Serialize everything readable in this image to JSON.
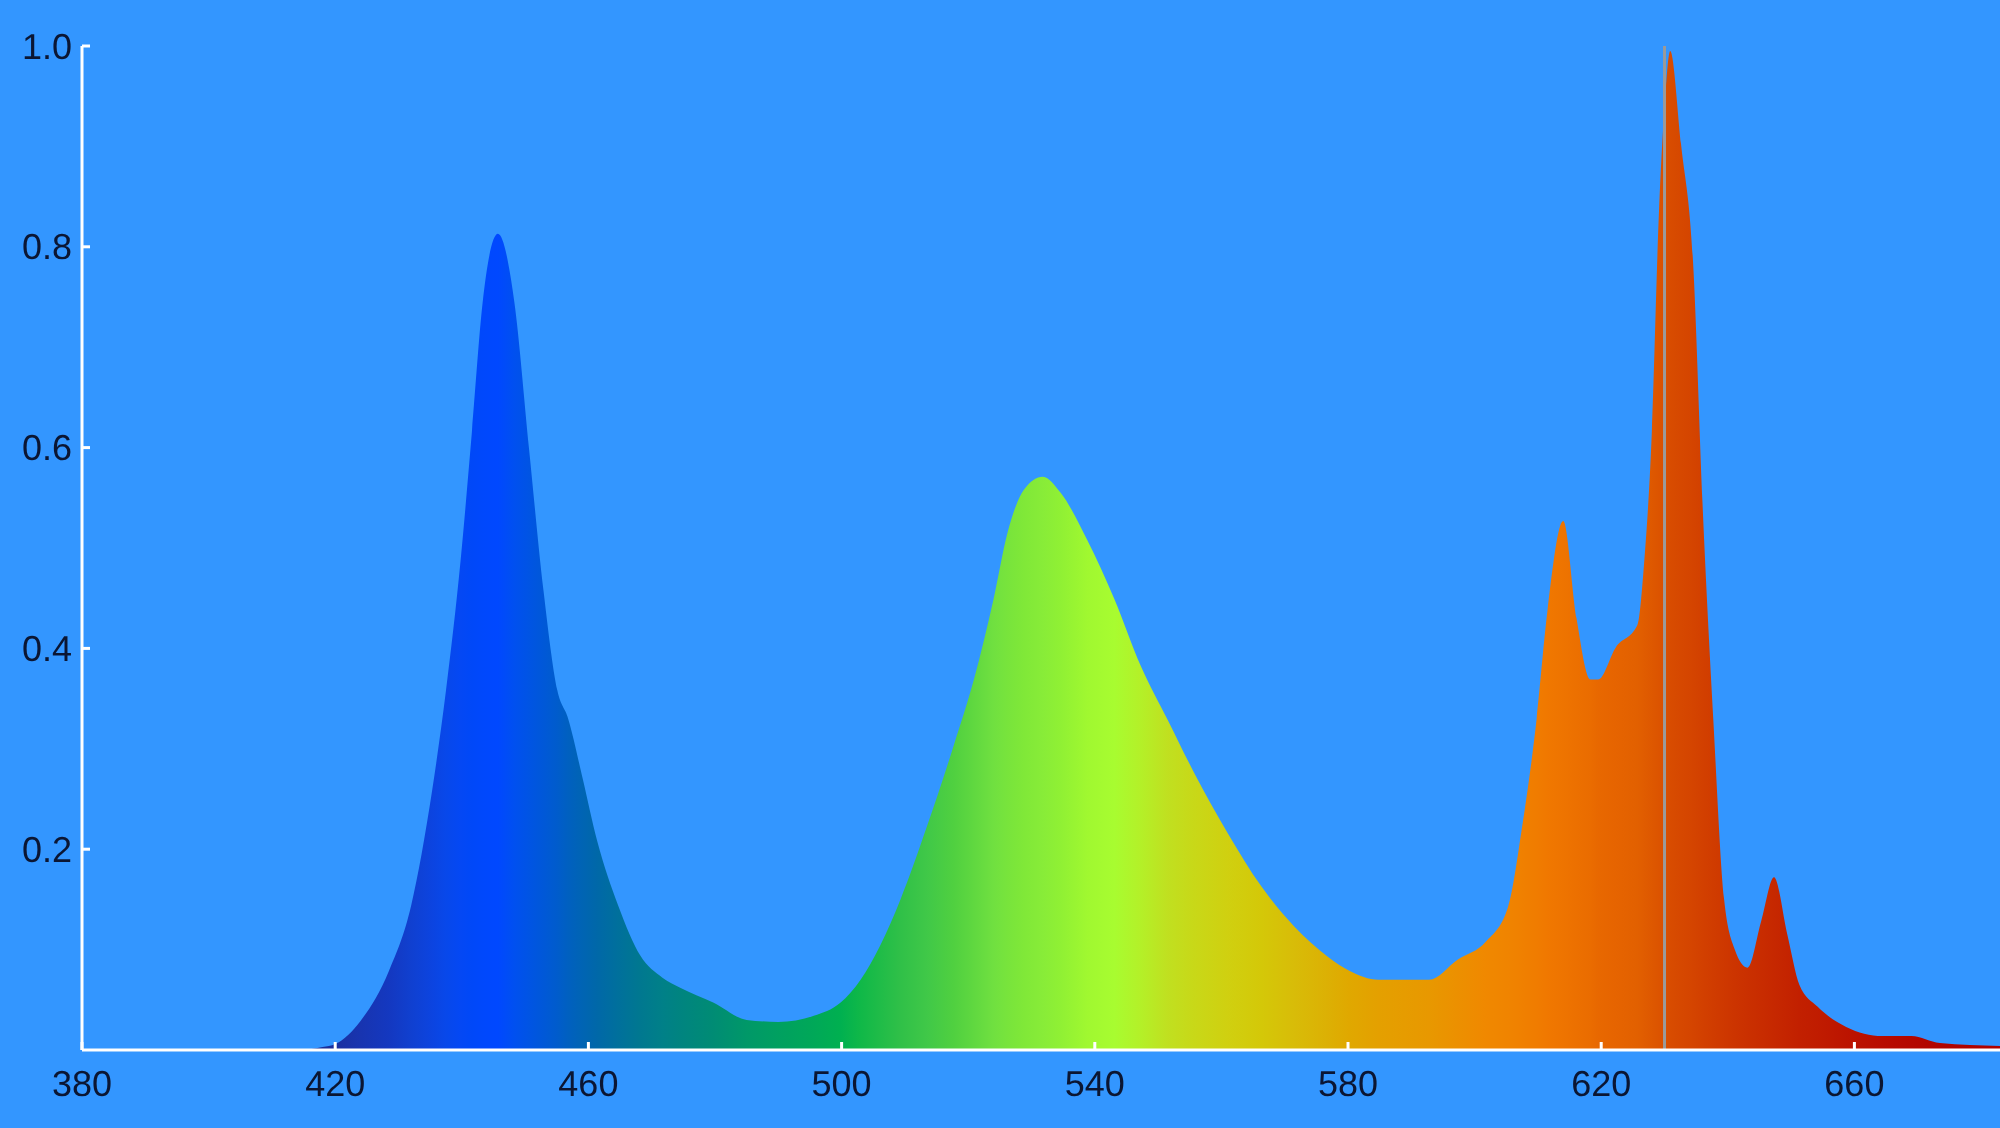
{
  "chart_data": {
    "type": "area",
    "x": [
      380,
      414,
      418,
      420,
      424,
      428.5,
      432,
      435.3,
      437.5,
      439.8,
      441.6,
      443.3,
      445.7,
      448.3,
      450.6,
      452.9,
      455.1,
      456.8,
      459,
      461.4,
      464.7,
      468.2,
      471.7,
      474.5,
      479.8,
      485,
      490,
      495.6,
      499.8,
      503,
      506.1,
      509.3,
      513.5,
      517.7,
      520.9,
      524,
      526.2,
      528.8,
      531.8,
      534.6,
      538.8,
      543.1,
      547.3,
      551.5,
      555.7,
      561,
      566.3,
      571.5,
      576.8,
      580.2,
      584.8,
      592.8,
      597.3,
      601.8,
      605.3,
      607.5,
      609.8,
      611.5,
      614,
      616.1,
      618.3,
      619.5,
      622.3,
      625.7,
      626.8,
      628,
      629.1,
      630,
      630.9,
      632.6,
      634.6,
      636,
      637.7,
      639.4,
      641.1,
      643.1,
      645.3,
      647.3,
      649.4,
      651.3,
      654.2,
      658.7,
      664.4,
      669,
      673.5,
      683
    ],
    "series": [
      {
        "values": [
          0,
          0,
          0.003,
          0.006,
          0.029,
          0.079,
          0.144,
          0.258,
          0.358,
          0.487,
          0.616,
          0.745,
          0.813,
          0.745,
          0.6,
          0.458,
          0.358,
          0.33,
          0.273,
          0.208,
          0.144,
          0.094,
          0.072,
          0.062,
          0.047,
          0.03,
          0.028,
          0.034,
          0.047,
          0.07,
          0.104,
          0.15,
          0.223,
          0.303,
          0.369,
          0.449,
          0.515,
          0.558,
          0.571,
          0.555,
          0.508,
          0.449,
          0.382,
          0.329,
          0.276,
          0.216,
          0.163,
          0.123,
          0.093,
          0.079,
          0.07,
          0.07,
          0.09,
          0.108,
          0.143,
          0.222,
          0.33,
          0.437,
          0.527,
          0.43,
          0.369,
          0.369,
          0.401,
          0.423,
          0.487,
          0.616,
          0.831,
          0.939,
          0.995,
          0.903,
          0.774,
          0.545,
          0.33,
          0.151,
          0.1,
          0.082,
          0.129,
          0.172,
          0.115,
          0.065,
          0.043,
          0.023,
          0.014,
          0.014,
          0.007,
          0.004
        ],
        "colors": [
          "#1a2a8c",
          "#1a2a8c",
          "#1a2e98",
          "#1a30a0",
          "#1834b0",
          "#1438c0",
          "#1040d0",
          "#0c44e0",
          "#0848ea",
          "#0448f4",
          "#0048f8",
          "#0048fc",
          "#0048ff",
          "#0050f0",
          "#0054e4",
          "#0058d8",
          "#005ccc",
          "#0060c0",
          "#0064b4",
          "#0068a8",
          "#00709c",
          "#007890",
          "#008088",
          "#008480",
          "#008c74",
          "#009868",
          "#00a060",
          "#00a858",
          "#00b050",
          "#10b848",
          "#20bc48",
          "#30c048",
          "#40c848",
          "#50d040",
          "#60d840",
          "#70e040",
          "#78e43c",
          "#80e838",
          "#88ec38",
          "#90f034",
          "#a0f830",
          "#a8fc30",
          "#b4f028",
          "#c0e020",
          "#c8d818",
          "#d0d010",
          "#d4c808",
          "#d8bc08",
          "#dcb004",
          "#e0a800",
          "#e4a000",
          "#e89800",
          "#ec9000",
          "#f08800",
          "#f08400",
          "#f08000",
          "#f07c00",
          "#f07800",
          "#ee7400",
          "#ec7000",
          "#ea6c00",
          "#e86800",
          "#e66400",
          "#e26000",
          "#e05c00",
          "#de5800",
          "#dc5400",
          "#da5000",
          "#d84c00",
          "#d64800",
          "#d44400",
          "#d24000",
          "#d03c00",
          "#ce3800",
          "#cc3400",
          "#ca3000",
          "#c82c00",
          "#c62800",
          "#c42400",
          "#c22000",
          "#c01c00",
          "#bc1400",
          "#b80c00",
          "#b40800",
          "#b00400",
          "#ac0000"
        ]
      }
    ],
    "xlim": [
      380,
      683
    ],
    "xticks": [
      380,
      420,
      460,
      500,
      540,
      580,
      620,
      660
    ],
    "ylim": [
      0,
      1
    ],
    "yticks": [
      0.2,
      0.4,
      0.6,
      0.8,
      {
        "value": 1,
        "label": "1.0"
      }
    ],
    "ref_lines": [
      {
        "axis": "x",
        "value": 630,
        "color": "#9a9a9a"
      }
    ]
  }
}
